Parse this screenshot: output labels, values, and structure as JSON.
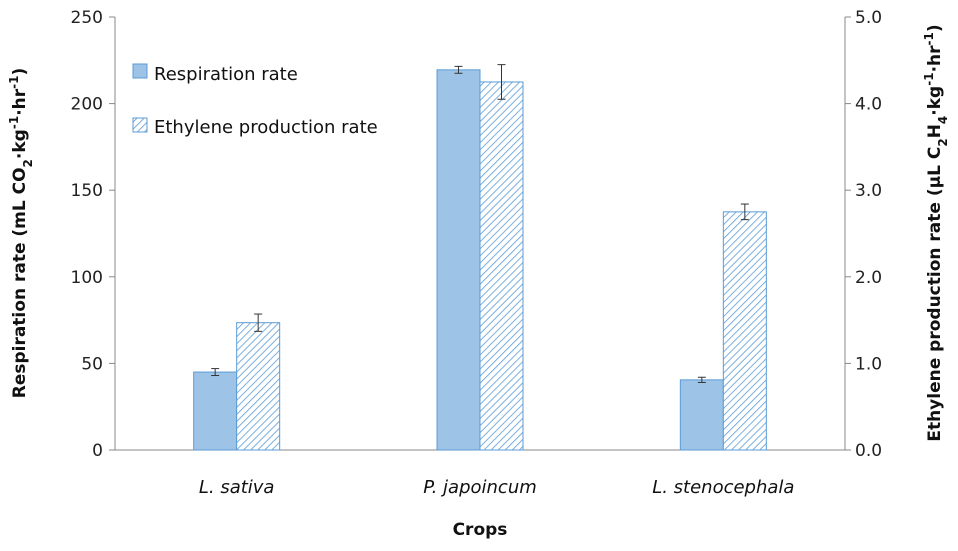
{
  "chart_data": {
    "type": "bar",
    "categories": [
      "L. sativa",
      "P. japoincum",
      "L. stenocephala"
    ],
    "xlabel": "Crops",
    "ylabel_left": {
      "main": "Respiration rate (mL CO",
      "sub": "2",
      "mid": "·kg",
      "sup1": "-1",
      "mid2": "·hr",
      "sup2": "-1",
      "end": ")"
    },
    "ylabel_right": {
      "main": "Ethylene production rate (μL C",
      "sub1": "2",
      "mid": "H",
      "sub2": "4",
      "mid2": "·kg",
      "sup1": "-1",
      "mid3": "·hr",
      "sup2": "-1",
      "end": ")"
    },
    "ylim_left": [
      0,
      250
    ],
    "ylim_right": [
      0,
      5
    ],
    "yticks_left": [
      "0",
      "50",
      "100",
      "150",
      "200",
      "250"
    ],
    "yticks_right": [
      "0.0",
      "1.0",
      "2.0",
      "3.0",
      "4.0",
      "5.0"
    ],
    "series": [
      {
        "name": "Respiration rate",
        "axis": "left",
        "values": [
          45,
          219.5,
          40.5
        ],
        "errors": [
          2,
          2,
          1.5
        ],
        "color": "#9dc3e6",
        "pattern": "solid"
      },
      {
        "name": "Ethylene production rate",
        "axis": "right",
        "values": [
          1.47,
          4.25,
          2.75
        ],
        "errors": [
          0.1,
          0.2,
          0.09
        ],
        "color": "#5b9bd5",
        "pattern": "hatch"
      }
    ],
    "legend": "top-left",
    "grid": false
  }
}
